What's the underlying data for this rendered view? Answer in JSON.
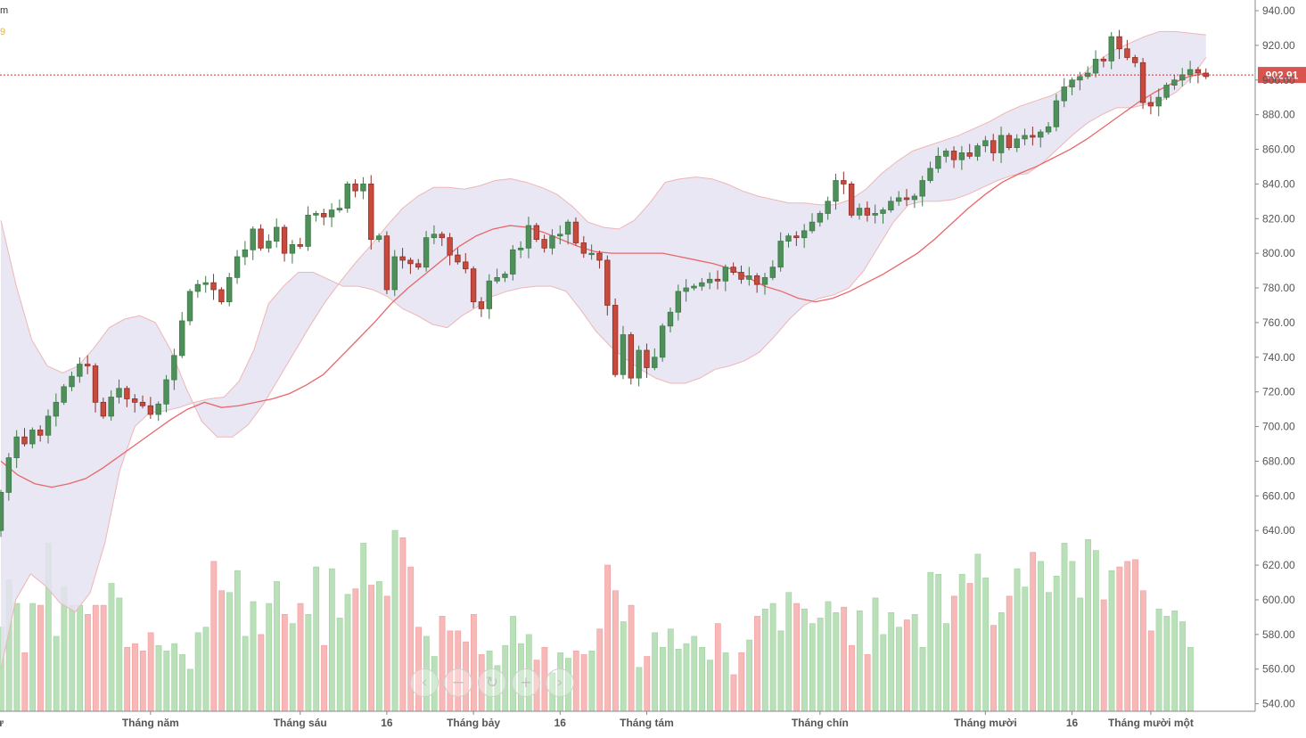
{
  "header": {
    "label_top": "m",
    "label_sub": "9"
  },
  "price_tag": "902.91",
  "navigator": [
    {
      "name": "scroll-left-button",
      "glyph": "‹"
    },
    {
      "name": "zoom-out-button",
      "glyph": "−"
    },
    {
      "name": "reset-button",
      "glyph": "↻"
    },
    {
      "name": "zoom-in-button",
      "glyph": "+"
    },
    {
      "name": "scroll-right-button",
      "glyph": "›"
    }
  ],
  "colors": {
    "up": "#5b9e63",
    "up_body": "#4e8f5a",
    "down": "#c0453a",
    "down_body": "#c84a3c",
    "vol_up": "#b9e0b9",
    "vol_down": "#f7b8b8",
    "band_fill": "#e4e3f1",
    "band_line": "#f0b5b5",
    "ma_line": "#e9676a",
    "price_line": "#cc3333",
    "price_tag_bg": "#d9534f"
  },
  "chart_data": {
    "type": "candlestick",
    "title": "",
    "y_axis": {
      "min": 540,
      "max": 940,
      "step": 20,
      "tick_labels": [
        "940.00",
        "920.00",
        "900.00",
        "880.00",
        "860.00",
        "840.00",
        "820.00",
        "800.00",
        "780.00",
        "760.00",
        "740.00",
        "720.00",
        "700.00",
        "680.00",
        "660.00",
        "640.00",
        "620.00",
        "600.00",
        "580.00",
        "560.00",
        "540.00"
      ]
    },
    "x_axis": {
      "tick_labels": [
        {
          "label": "g tư",
          "index": -1
        },
        {
          "label": "Tháng năm",
          "index": 19
        },
        {
          "label": "Tháng sáu",
          "index": 38
        },
        {
          "label": "16",
          "index": 49
        },
        {
          "label": "Tháng bảy",
          "index": 60
        },
        {
          "label": "16",
          "index": 71
        },
        {
          "label": "Tháng tám",
          "index": 82
        },
        {
          "label": "Tháng chín",
          "index": 104
        },
        {
          "label": "Tháng mười",
          "index": 125
        },
        {
          "label": "16",
          "index": 136
        },
        {
          "label": "Tháng mười một",
          "index": 146
        }
      ]
    },
    "last_price": 902.91,
    "candles": [
      [
        640,
        662
      ],
      [
        662,
        682
      ],
      [
        682,
        694
      ],
      [
        694,
        690
      ],
      [
        690,
        698
      ],
      [
        698,
        695
      ],
      [
        695,
        706
      ],
      [
        706,
        714
      ],
      [
        714,
        723
      ],
      [
        723,
        729
      ],
      [
        729,
        736
      ],
      [
        736,
        735
      ],
      [
        735,
        714
      ],
      [
        714,
        706
      ],
      [
        706,
        717
      ],
      [
        717,
        722
      ],
      [
        722,
        716
      ],
      [
        716,
        714
      ],
      [
        714,
        712
      ],
      [
        712,
        707
      ],
      [
        707,
        713
      ],
      [
        713,
        727
      ],
      [
        727,
        741
      ],
      [
        741,
        761
      ],
      [
        761,
        778
      ],
      [
        778,
        782
      ],
      [
        782,
        783
      ],
      [
        783,
        779
      ],
      [
        779,
        772
      ],
      [
        772,
        786
      ],
      [
        786,
        798
      ],
      [
        798,
        802
      ],
      [
        802,
        814
      ],
      [
        814,
        803
      ],
      [
        803,
        807
      ],
      [
        807,
        815
      ],
      [
        815,
        800
      ],
      [
        800,
        805
      ],
      [
        805,
        804
      ],
      [
        804,
        822
      ],
      [
        822,
        823
      ],
      [
        823,
        821
      ],
      [
        821,
        825
      ],
      [
        825,
        826
      ],
      [
        826,
        840
      ],
      [
        840,
        836
      ],
      [
        836,
        840
      ],
      [
        840,
        808
      ],
      [
        808,
        810
      ],
      [
        810,
        779
      ],
      [
        779,
        798
      ],
      [
        798,
        796
      ],
      [
        796,
        794
      ],
      [
        794,
        792
      ],
      [
        792,
        809
      ],
      [
        809,
        811
      ],
      [
        811,
        809
      ],
      [
        809,
        799
      ],
      [
        799,
        795
      ],
      [
        795,
        791
      ],
      [
        791,
        772
      ],
      [
        772,
        768
      ],
      [
        768,
        784
      ],
      [
        784,
        786
      ],
      [
        786,
        788
      ],
      [
        788,
        802
      ],
      [
        802,
        803
      ],
      [
        803,
        816
      ],
      [
        816,
        808
      ],
      [
        808,
        803
      ],
      [
        803,
        810
      ],
      [
        810,
        811
      ],
      [
        811,
        818
      ],
      [
        818,
        806
      ],
      [
        806,
        800
      ],
      [
        800,
        800
      ],
      [
        800,
        796
      ],
      [
        796,
        770
      ],
      [
        770,
        730
      ],
      [
        730,
        753
      ],
      [
        753,
        728
      ],
      [
        728,
        744
      ],
      [
        744,
        734
      ],
      [
        734,
        740
      ],
      [
        740,
        758
      ],
      [
        758,
        766
      ],
      [
        766,
        778
      ],
      [
        778,
        780
      ],
      [
        780,
        781
      ],
      [
        781,
        783
      ],
      [
        783,
        785
      ],
      [
        785,
        784
      ],
      [
        784,
        792
      ],
      [
        792,
        789
      ],
      [
        789,
        785
      ],
      [
        785,
        787
      ],
      [
        787,
        782
      ],
      [
        782,
        786
      ],
      [
        786,
        792
      ],
      [
        792,
        807
      ],
      [
        807,
        810
      ],
      [
        810,
        809
      ],
      [
        809,
        813
      ],
      [
        813,
        818
      ],
      [
        818,
        823
      ],
      [
        823,
        830
      ],
      [
        830,
        842
      ],
      [
        842,
        840
      ],
      [
        840,
        822
      ],
      [
        822,
        826
      ],
      [
        826,
        822
      ],
      [
        822,
        823
      ],
      [
        823,
        825
      ],
      [
        825,
        830
      ],
      [
        830,
        832
      ],
      [
        832,
        831
      ],
      [
        831,
        833
      ],
      [
        833,
        842
      ],
      [
        842,
        849
      ],
      [
        849,
        856
      ],
      [
        856,
        859
      ],
      [
        859,
        854
      ],
      [
        854,
        858
      ],
      [
        858,
        856
      ],
      [
        856,
        862
      ],
      [
        862,
        865
      ],
      [
        865,
        858
      ],
      [
        858,
        868
      ],
      [
        868,
        861
      ],
      [
        861,
        866
      ],
      [
        866,
        868
      ],
      [
        868,
        867
      ],
      [
        867,
        870
      ],
      [
        870,
        873
      ],
      [
        873,
        888
      ],
      [
        888,
        896
      ],
      [
        896,
        900
      ],
      [
        900,
        902
      ],
      [
        902,
        904
      ],
      [
        904,
        912
      ],
      [
        912,
        911
      ],
      [
        911,
        925
      ],
      [
        925,
        918
      ],
      [
        918,
        913
      ],
      [
        913,
        910
      ],
      [
        910,
        887
      ],
      [
        887,
        885
      ],
      [
        885,
        890
      ],
      [
        890,
        897
      ],
      [
        897,
        900
      ],
      [
        900,
        903
      ],
      [
        903,
        906
      ],
      [
        906,
        904
      ],
      [
        904,
        902
      ]
    ],
    "series": [
      {
        "name": "SMA20",
        "values": [
          680,
          672,
          667,
          665,
          667,
          670,
          676,
          683,
          690,
          697,
          704,
          710,
          714,
          711,
          712,
          714,
          716,
          719,
          724,
          730,
          740,
          750,
          760,
          771,
          780,
          788,
          796,
          804,
          810,
          814,
          816,
          815,
          812,
          808,
          804,
          801,
          800,
          800,
          800,
          800,
          798,
          796,
          794,
          791,
          786,
          781,
          778,
          774,
          772,
          774,
          778,
          783,
          788,
          794,
          800,
          808,
          817,
          826,
          834,
          841,
          846,
          850,
          855,
          860,
          866,
          873,
          880,
          887,
          893,
          898,
          902,
          904
        ]
      },
      {
        "name": "Upper band",
        "values": [
          819,
          781,
          750,
          735,
          731,
          735,
          745,
          757,
          762,
          764,
          760,
          744,
          722,
          703,
          694,
          694,
          701,
          713,
          728,
          743,
          758,
          772,
          784,
          795,
          805,
          816,
          826,
          833,
          838,
          838,
          837,
          839,
          842,
          843,
          841,
          838,
          834,
          827,
          818,
          815,
          814,
          819,
          829,
          841,
          843,
          844,
          843,
          840,
          836,
          833,
          831,
          829,
          829,
          828,
          828,
          831,
          837,
          846,
          853,
          859,
          862,
          865,
          868,
          872,
          876,
          881,
          885,
          888,
          891,
          896,
          903,
          911,
          917,
          921,
          925,
          928,
          928,
          927,
          926
        ]
      },
      {
        "name": "Lower band",
        "values": [
          560,
          600,
          615,
          608,
          598,
          593,
          604,
          633,
          675,
          700,
          708,
          709,
          711,
          714,
          716,
          717,
          726,
          744,
          771,
          781,
          789,
          789,
          785,
          781,
          781,
          779,
          775,
          768,
          764,
          759,
          757,
          764,
          769,
          775,
          778,
          780,
          781,
          781,
          778,
          767,
          755,
          746,
          739,
          733,
          728,
          725,
          725,
          728,
          733,
          735,
          738,
          743,
          752,
          762,
          770,
          774,
          776,
          780,
          790,
          804,
          818,
          828,
          830,
          830,
          831,
          834,
          838,
          842,
          845,
          846,
          852,
          860,
          868,
          875,
          880,
          884,
          884,
          886,
          888,
          893,
          901,
          913
        ]
      },
      {
        "name": "Volume",
        "unit": "relative height 0-100",
        "values": [
          46,
          72,
          59,
          32,
          59,
          58,
          92,
          41,
          68,
          58,
          58,
          53,
          58,
          58,
          70,
          62,
          35,
          37,
          33,
          43,
          36,
          33,
          37,
          31,
          23,
          43,
          46,
          82,
          66,
          65,
          77,
          41,
          60,
          42,
          59,
          71,
          53,
          48,
          59,
          53,
          79,
          36,
          78,
          51,
          64,
          67,
          92,
          69,
          71,
          63,
          99,
          95,
          79,
          46,
          41,
          30,
          52,
          44,
          44,
          38,
          53,
          31,
          33,
          25,
          36,
          52,
          37,
          42,
          28,
          35,
          21,
          32,
          29,
          33,
          31,
          33,
          45,
          80,
          66,
          49,
          58,
          24,
          30,
          43,
          35,
          45,
          34,
          37,
          41,
          35,
          28,
          48,
          32,
          20,
          32,
          39,
          52,
          56,
          59,
          44,
          65,
          59,
          56,
          48,
          51,
          60,
          54,
          57,
          36,
          55,
          31,
          62,
          42,
          54,
          46,
          50,
          53,
          35,
          76,
          75,
          48,
          63,
          75,
          70,
          86,
          73,
          47,
          54,
          63,
          78,
          68,
          87,
          82,
          65,
          74,
          92,
          82,
          62,
          94,
          88,
          61,
          77,
          79,
          82,
          83,
          66,
          44,
          56,
          52,
          55,
          49,
          35
        ]
      }
    ]
  }
}
